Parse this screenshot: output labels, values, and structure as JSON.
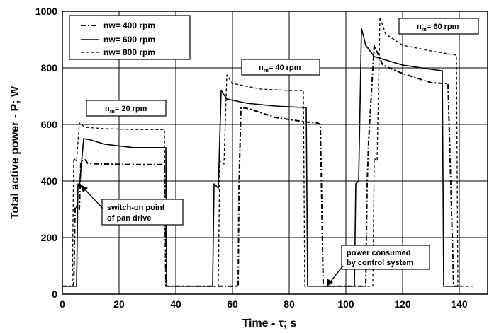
{
  "chart_data": {
    "type": "line",
    "xlabel": "Time - τ; s",
    "ylabel": "Total active power - P; W",
    "xlim": [
      0,
      150
    ],
    "ylim": [
      0,
      1000
    ],
    "xticks": [
      0,
      20,
      40,
      60,
      80,
      100,
      120,
      140
    ],
    "yticks": [
      0,
      200,
      400,
      600,
      800,
      1000
    ],
    "grid": true,
    "legend_position": "top-left",
    "series": [
      {
        "name": "nw= 400 rpm",
        "style": "dash-dot",
        "color": "#000000",
        "points": [
          [
            0,
            28
          ],
          [
            4,
            28
          ],
          [
            4.5,
            310
          ],
          [
            6,
            300
          ],
          [
            6.5,
            470
          ],
          [
            8,
            475
          ],
          [
            9,
            462
          ],
          [
            15,
            460
          ],
          [
            25,
            458
          ],
          [
            35,
            458
          ],
          [
            36,
            458
          ],
          [
            36.5,
            28
          ],
          [
            40,
            28
          ],
          [
            58,
            28
          ],
          [
            62,
            28
          ],
          [
            62.3,
            390
          ],
          [
            63,
            660
          ],
          [
            66,
            655
          ],
          [
            75,
            625
          ],
          [
            85,
            610
          ],
          [
            90,
            605
          ],
          [
            91,
            600
          ],
          [
            92,
            28
          ],
          [
            98,
            28
          ],
          [
            98,
            28
          ],
          [
            107,
            28
          ],
          [
            107.5,
            390
          ],
          [
            108,
            540
          ],
          [
            110,
            880
          ],
          [
            113,
            810
          ],
          [
            120,
            780
          ],
          [
            130,
            748
          ],
          [
            134,
            745
          ],
          [
            136,
            745
          ],
          [
            138,
            28
          ],
          [
            141,
            28
          ]
        ]
      },
      {
        "name": "nw= 600 rpm",
        "style": "solid",
        "color": "#000000",
        "points": [
          [
            0,
            28
          ],
          [
            5,
            28
          ],
          [
            5.5,
            390
          ],
          [
            6,
            380
          ],
          [
            7.5,
            550
          ],
          [
            10,
            545
          ],
          [
            15,
            530
          ],
          [
            25,
            518
          ],
          [
            35,
            518
          ],
          [
            36.5,
            518
          ],
          [
            36.8,
            28
          ],
          [
            48,
            28
          ],
          [
            52,
            28
          ],
          [
            53,
            28
          ],
          [
            53.5,
            390
          ],
          [
            55,
            375
          ],
          [
            56,
            720
          ],
          [
            58,
            690
          ],
          [
            65,
            675
          ],
          [
            75,
            665
          ],
          [
            85,
            660
          ],
          [
            86,
            660
          ],
          [
            86.5,
            28
          ],
          [
            92,
            28
          ],
          [
            99,
            28
          ],
          [
            103,
            28
          ],
          [
            103.5,
            390
          ],
          [
            104.5,
            400
          ],
          [
            105.5,
            940
          ],
          [
            107,
            880
          ],
          [
            110,
            840
          ],
          [
            120,
            810
          ],
          [
            130,
            795
          ],
          [
            134,
            790
          ],
          [
            134.5,
            28
          ],
          [
            140,
            28
          ]
        ]
      },
      {
        "name": "nw= 800 rpm",
        "style": "dashed",
        "color": "#000000",
        "points": [
          [
            0,
            28
          ],
          [
            3.5,
            28
          ],
          [
            4,
            480
          ],
          [
            5,
            470
          ],
          [
            6,
            605
          ],
          [
            8,
            590
          ],
          [
            15,
            585
          ],
          [
            25,
            582
          ],
          [
            35,
            582
          ],
          [
            36,
            582
          ],
          [
            36.5,
            28
          ],
          [
            40,
            28
          ],
          [
            54,
            28
          ],
          [
            55,
            28
          ],
          [
            55.5,
            470
          ],
          [
            57,
            460
          ],
          [
            58,
            775
          ],
          [
            60,
            745
          ],
          [
            70,
            725
          ],
          [
            80,
            720
          ],
          [
            85,
            720
          ],
          [
            85.5,
            28
          ],
          [
            91,
            28
          ],
          [
            108,
            28
          ],
          [
            109.5,
            28
          ],
          [
            110,
            480
          ],
          [
            111,
            470
          ],
          [
            112,
            980
          ],
          [
            114,
            920
          ],
          [
            120,
            880
          ],
          [
            130,
            860
          ],
          [
            139,
            845
          ],
          [
            139.5,
            28
          ],
          [
            145,
            28
          ]
        ]
      }
    ],
    "annotations": {
      "box_20": {
        "prefix": "n",
        "sub": "m",
        "suffix": "= 20 rpm"
      },
      "box_40": {
        "prefix": "n",
        "sub": "m",
        "suffix": "= 40 rpm"
      },
      "box_60": {
        "prefix": "n",
        "sub": "m",
        "suffix": "= 60 rpm"
      },
      "switch_line1": "switch-on point",
      "switch_line2": "of pan drive",
      "control_line1": "power consumed",
      "control_line2": "by control system"
    }
  }
}
